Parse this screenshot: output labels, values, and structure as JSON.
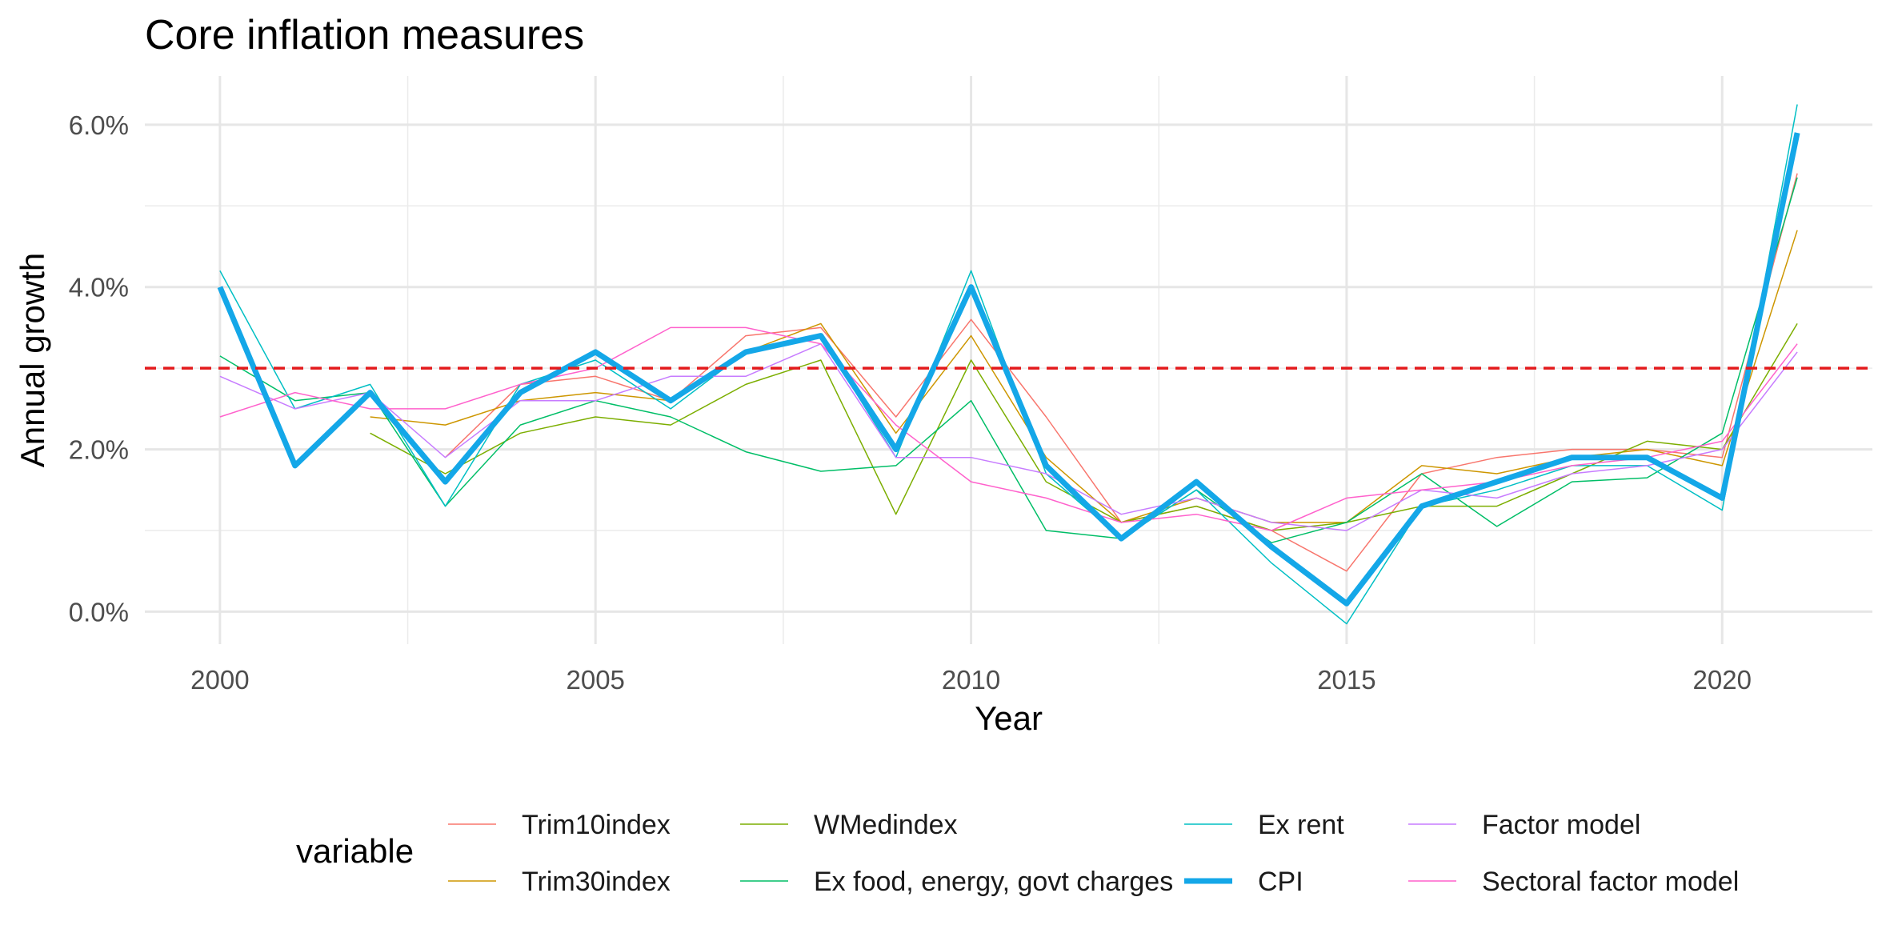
{
  "chart_data": {
    "type": "line",
    "title": "Core inflation measures",
    "xlabel": "Year",
    "ylabel": "Annual growth",
    "xlim": [
      1999,
      2022
    ],
    "ylim": [
      -0.004,
      0.066
    ],
    "x_ticks": [
      2000,
      2005,
      2010,
      2015,
      2020
    ],
    "x_tick_labels": [
      "2000",
      "2005",
      "2010",
      "2015",
      "2020"
    ],
    "y_ticks": [
      0.0,
      0.02,
      0.04,
      0.06
    ],
    "y_tick_labels": [
      "0.0%",
      "2.0%",
      "4.0%",
      "6.0%"
    ],
    "grid": true,
    "legend_title": "variable",
    "legend_position": "bottom",
    "reference_line": {
      "y": 0.03,
      "color": "#e31a1c",
      "style": "dashed"
    },
    "x": [
      2000,
      2001,
      2002,
      2003,
      2004,
      2005,
      2006,
      2007,
      2008,
      2009,
      2010,
      2011,
      2012,
      2013,
      2014,
      2015,
      2016,
      2017,
      2018,
      2019,
      2020,
      2021
    ],
    "series": [
      {
        "name": "Trim10index",
        "color": "#F8766D",
        "width": 1.5,
        "values": [
          null,
          null,
          null,
          0.019,
          0.028,
          0.029,
          0.026,
          0.034,
          0.035,
          0.024,
          0.036,
          0.024,
          0.011,
          0.013,
          0.01,
          0.005,
          0.017,
          0.019,
          0.02,
          0.02,
          0.019,
          0.054
        ]
      },
      {
        "name": "Trim30index",
        "color": "#CD9600",
        "width": 1.5,
        "values": [
          null,
          null,
          0.024,
          0.023,
          0.026,
          0.027,
          0.026,
          0.032,
          0.0355,
          0.022,
          0.034,
          0.019,
          0.011,
          0.014,
          0.011,
          0.011,
          0.018,
          0.017,
          0.019,
          0.02,
          0.018,
          0.047
        ]
      },
      {
        "name": "WMedindex",
        "color": "#7CAE00",
        "width": 1.5,
        "values": [
          null,
          null,
          0.022,
          0.017,
          0.022,
          0.024,
          0.023,
          0.028,
          0.031,
          0.012,
          0.031,
          0.016,
          0.011,
          0.013,
          0.01,
          0.011,
          0.013,
          0.013,
          0.017,
          0.021,
          0.02,
          0.0355
        ]
      },
      {
        "name": "Ex food, energy, govt charges",
        "color": "#00BE67",
        "width": 1.5,
        "values": [
          0.0315,
          0.026,
          0.027,
          0.013,
          0.023,
          0.026,
          0.024,
          0.0197,
          0.0173,
          0.018,
          0.026,
          0.01,
          0.009,
          0.015,
          0.0085,
          0.011,
          0.017,
          0.0105,
          0.016,
          0.0165,
          0.022,
          0.0535
        ]
      },
      {
        "name": "Ex rent",
        "color": "#00BFC4",
        "width": 1.5,
        "values": [
          0.042,
          0.025,
          0.028,
          0.013,
          0.028,
          0.031,
          0.025,
          0.032,
          0.034,
          0.019,
          0.042,
          0.017,
          0.009,
          0.015,
          0.006,
          -0.0015,
          0.013,
          0.015,
          0.018,
          0.018,
          0.0125,
          0.0625
        ]
      },
      {
        "name": "CPI",
        "color": "#14A7E8",
        "width": 7,
        "values": [
          0.04,
          0.018,
          0.027,
          0.016,
          0.027,
          0.032,
          0.026,
          0.032,
          0.034,
          0.02,
          0.04,
          0.018,
          0.009,
          0.016,
          0.008,
          0.001,
          0.013,
          0.016,
          0.019,
          0.019,
          0.014,
          0.059
        ]
      },
      {
        "name": "Factor model",
        "color": "#C77CFF",
        "width": 1.5,
        "values": [
          0.029,
          0.025,
          0.027,
          0.019,
          0.026,
          0.026,
          0.029,
          0.029,
          0.033,
          0.019,
          0.019,
          0.017,
          0.012,
          0.014,
          0.011,
          0.01,
          0.015,
          0.014,
          0.017,
          0.018,
          0.02,
          0.032
        ]
      },
      {
        "name": "Sectoral factor model",
        "color": "#FF61CC",
        "width": 1.5,
        "values": [
          0.024,
          0.027,
          0.025,
          0.025,
          0.028,
          0.03,
          0.035,
          0.035,
          0.033,
          0.023,
          0.016,
          0.014,
          0.011,
          0.012,
          0.01,
          0.014,
          0.015,
          0.016,
          0.018,
          0.019,
          0.021,
          0.033
        ]
      }
    ]
  }
}
